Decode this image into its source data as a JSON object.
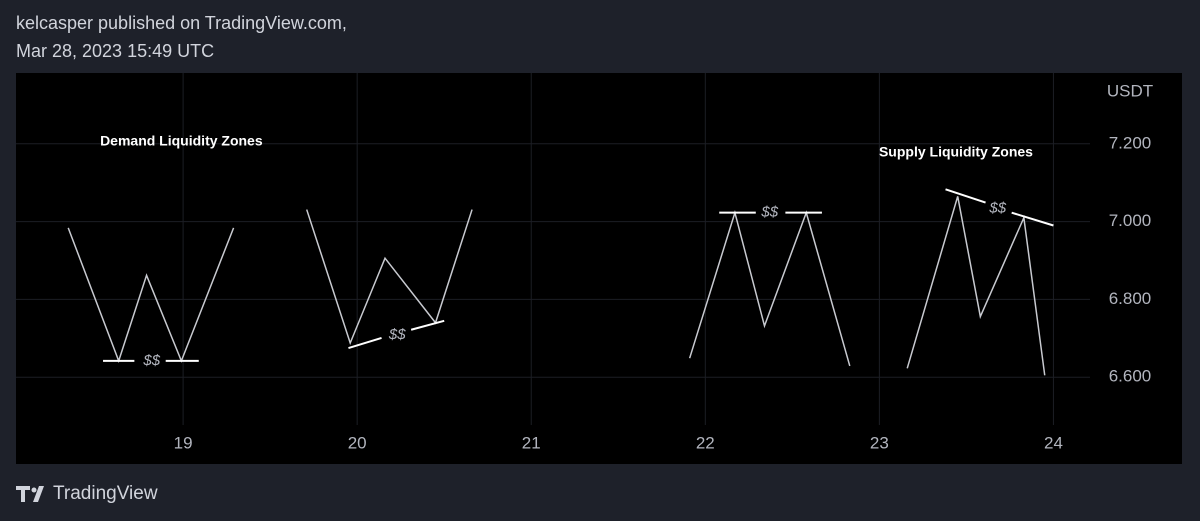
{
  "header": {
    "author_line": "kelcasper published on TradingView.com,",
    "date_line": "Mar 28, 2023 15:49 UTC"
  },
  "footer": {
    "brand": "TradingView"
  },
  "chart_data": {
    "type": "line",
    "y_unit": "USDT",
    "xlim": [
      18.04,
      24.21
    ],
    "ylim": [
      6.377,
      7.382
    ],
    "xticks": [
      19,
      20,
      21,
      22,
      23,
      24
    ],
    "yticks": [
      {
        "value": 7.2,
        "label": "7.200"
      },
      {
        "value": 7.0,
        "label": "7.000"
      },
      {
        "value": 6.8,
        "label": "6.800"
      },
      {
        "value": 6.6,
        "label": "6.600"
      }
    ],
    "grid": true,
    "series": [
      {
        "color": "#c8cad0",
        "x": [
          18.34,
          18.63,
          18.79,
          18.99,
          19.29
        ],
        "values": [
          6.984,
          6.642,
          6.862,
          6.642,
          6.984
        ]
      },
      {
        "color": "#ffffff",
        "x": [
          18.54,
          18.72
        ],
        "values": [
          6.642,
          6.642
        ]
      },
      {
        "color": "#ffffff",
        "x": [
          18.9,
          19.09
        ],
        "values": [
          6.642,
          6.642
        ]
      },
      {
        "color": "#c8cad0",
        "x": [
          19.71,
          19.96,
          20.16,
          20.45,
          20.66
        ],
        "values": [
          7.031,
          6.688,
          6.906,
          6.74,
          7.031
        ]
      },
      {
        "color": "#ffffff",
        "x": [
          19.95,
          20.14
        ],
        "values": [
          6.675,
          6.701
        ]
      },
      {
        "color": "#ffffff",
        "x": [
          20.31,
          20.5
        ],
        "values": [
          6.722,
          6.745
        ]
      },
      {
        "color": "#c8cad0",
        "x": [
          21.91,
          22.17,
          22.34,
          22.58,
          22.83
        ],
        "values": [
          6.649,
          7.023,
          6.732,
          7.023,
          6.629
        ]
      },
      {
        "color": "#ffffff",
        "x": [
          22.08,
          22.29
        ],
        "values": [
          7.023,
          7.023
        ]
      },
      {
        "color": "#ffffff",
        "x": [
          22.46,
          22.67
        ],
        "values": [
          7.023,
          7.023
        ]
      },
      {
        "color": "#c8cad0",
        "x": [
          23.16,
          23.45,
          23.58,
          23.83,
          23.95
        ],
        "values": [
          6.623,
          7.065,
          6.756,
          7.01,
          6.605
        ]
      },
      {
        "color": "#ffffff",
        "x": [
          23.38,
          23.61
        ],
        "values": [
          7.083,
          7.049
        ]
      },
      {
        "color": "#ffffff",
        "x": [
          23.76,
          24.0
        ],
        "values": [
          7.023,
          6.99
        ]
      }
    ],
    "annotations": [
      {
        "text": "Demand Liquidity Zones",
        "x": 18.99,
        "y": 7.205,
        "bold": true
      },
      {
        "text": "Supply Liquidity Zones",
        "x": 23.44,
        "y": 7.177,
        "bold": true
      },
      {
        "text": "$$",
        "x": 18.82,
        "y": 6.642,
        "bold": false
      },
      {
        "text": "$$",
        "x": 20.23,
        "y": 6.709,
        "bold": false
      },
      {
        "text": "$$",
        "x": 22.37,
        "y": 7.023,
        "bold": false
      },
      {
        "text": "$$",
        "x": 23.68,
        "y": 7.033,
        "bold": false
      }
    ]
  }
}
